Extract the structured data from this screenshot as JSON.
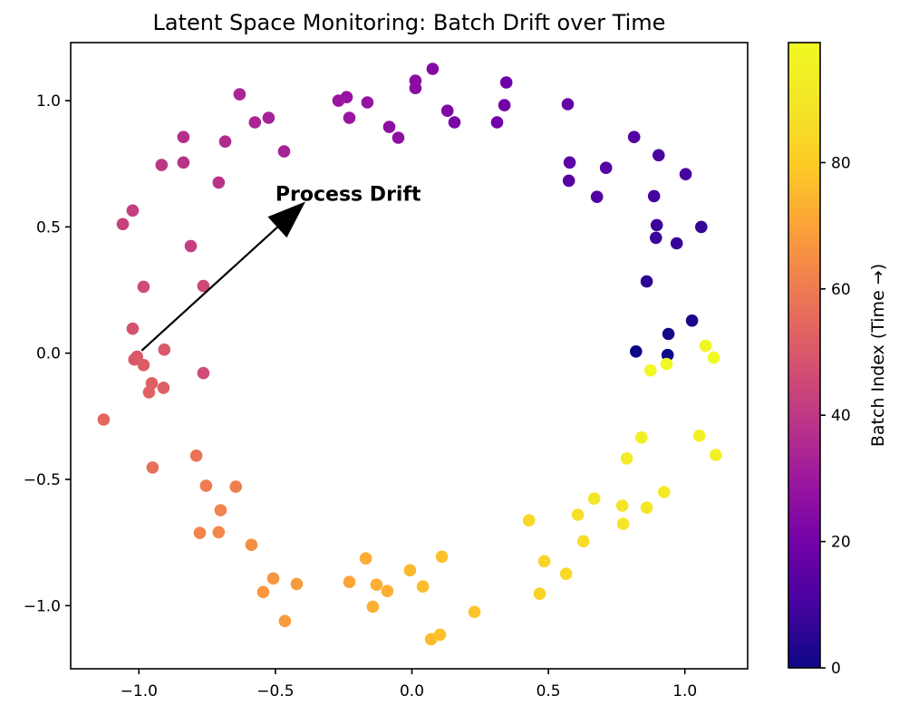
{
  "chart_data": {
    "type": "scatter",
    "title": "Latent Space Monitoring: Batch Drift over Time",
    "xlabel": "",
    "ylabel": "",
    "xlim": [
      -1.25,
      1.23
    ],
    "ylim": [
      -1.25,
      1.23
    ],
    "x_ticks": [
      -1.0,
      -0.5,
      0.0,
      0.5,
      1.0
    ],
    "x_tick_labels": [
      "−1.0",
      "−0.5",
      "0.0",
      "0.5",
      "1.0"
    ],
    "y_ticks": [
      -1.0,
      -0.5,
      0.0,
      0.5,
      1.0
    ],
    "y_tick_labels": [
      "−1.0",
      "−0.5",
      "0.0",
      "0.5",
      "1.0"
    ],
    "grid": false,
    "legend": "none",
    "marker_diameter_px": 13.6,
    "color_field": "batch_index",
    "colormap": {
      "name": "plasma",
      "stops": [
        [
          0.0,
          "#0d0887"
        ],
        [
          0.1,
          "#46039f"
        ],
        [
          0.2,
          "#7201a8"
        ],
        [
          0.3,
          "#9c179e"
        ],
        [
          0.4,
          "#bd3786"
        ],
        [
          0.5,
          "#d8576b"
        ],
        [
          0.6,
          "#ed7953"
        ],
        [
          0.7,
          "#fb9f3a"
        ],
        [
          0.8,
          "#fdca26"
        ],
        [
          0.9,
          "#f4e527"
        ],
        [
          1.0,
          "#f0f921"
        ]
      ]
    },
    "annotation": {
      "label": "Process Drift",
      "text_pos": [
        -0.5,
        0.633
      ],
      "arrow_from": [
        -0.99,
        0.01
      ],
      "arrow_to": [
        -0.39,
        0.6
      ],
      "arrow_color": "#000000"
    },
    "colorbar": {
      "label": "Batch Index (Time →)",
      "vmin": 0,
      "vmax": 99,
      "ticks": [
        0,
        20,
        40,
        60,
        80
      ],
      "tick_labels": [
        "0",
        "20",
        "40",
        "60",
        "80"
      ]
    },
    "points_format": [
      "x",
      "y",
      "batch_index"
    ],
    "points": [
      [
        0.821,
        0.007,
        0
      ],
      [
        0.937,
        -0.007,
        0
      ],
      [
        0.94,
        0.076,
        1
      ],
      [
        1.026,
        0.129,
        2
      ],
      [
        0.86,
        0.284,
        5
      ],
      [
        0.97,
        0.435,
        7
      ],
      [
        1.06,
        0.5,
        7
      ],
      [
        0.894,
        0.457,
        8
      ],
      [
        0.897,
        0.507,
        8
      ],
      [
        0.887,
        0.622,
        10
      ],
      [
        1.003,
        0.709,
        10
      ],
      [
        0.904,
        0.784,
        11
      ],
      [
        0.678,
        0.619,
        12
      ],
      [
        0.711,
        0.734,
        13
      ],
      [
        0.814,
        0.856,
        13
      ],
      [
        0.575,
        0.683,
        14
      ],
      [
        0.578,
        0.755,
        15
      ],
      [
        0.571,
        0.986,
        17
      ],
      [
        0.346,
        1.072,
        19
      ],
      [
        0.339,
        0.982,
        20
      ],
      [
        0.312,
        0.914,
        20
      ],
      [
        0.156,
        0.914,
        22
      ],
      [
        0.13,
        0.96,
        23
      ],
      [
        0.076,
        1.126,
        24
      ],
      [
        0.013,
        1.079,
        25
      ],
      [
        0.013,
        1.05,
        25
      ],
      [
        -0.083,
        0.896,
        26
      ],
      [
        -0.05,
        0.853,
        26
      ],
      [
        -0.163,
        0.993,
        28
      ],
      [
        -0.239,
        1.014,
        28
      ],
      [
        -0.269,
        1.0,
        29
      ],
      [
        -0.229,
        0.932,
        29
      ],
      [
        -0.525,
        0.932,
        33
      ],
      [
        -0.468,
        0.799,
        33
      ],
      [
        -0.575,
        0.914,
        34
      ],
      [
        -0.631,
        1.025,
        34
      ],
      [
        -0.684,
        0.838,
        36
      ],
      [
        -0.837,
        0.856,
        37
      ],
      [
        -0.837,
        0.755,
        38
      ],
      [
        -0.708,
        0.676,
        38
      ],
      [
        -0.917,
        0.745,
        39
      ],
      [
        -1.023,
        0.565,
        42
      ],
      [
        -1.059,
        0.511,
        43
      ],
      [
        -0.81,
        0.424,
        42
      ],
      [
        -0.983,
        0.263,
        46
      ],
      [
        -0.764,
        0.266,
        45
      ],
      [
        -1.023,
        0.097,
        48
      ],
      [
        -0.907,
        0.014,
        50
      ],
      [
        -1.007,
        -0.014,
        50
      ],
      [
        -1.017,
        -0.025,
        50
      ],
      [
        -0.983,
        -0.047,
        51
      ],
      [
        -0.764,
        -0.079,
        46
      ],
      [
        -0.953,
        -0.119,
        52
      ],
      [
        -0.963,
        -0.155,
        53
      ],
      [
        -0.91,
        -0.137,
        52
      ],
      [
        -1.129,
        -0.263,
        54
      ],
      [
        -0.95,
        -0.453,
        57
      ],
      [
        -0.79,
        -0.406,
        58
      ],
      [
        -0.754,
        -0.525,
        60
      ],
      [
        -0.645,
        -0.529,
        61
      ],
      [
        -0.701,
        -0.622,
        62
      ],
      [
        -0.777,
        -0.712,
        62
      ],
      [
        -0.708,
        -0.709,
        63
      ],
      [
        -0.588,
        -0.759,
        65
      ],
      [
        -0.508,
        -0.892,
        67
      ],
      [
        -0.545,
        -0.946,
        67
      ],
      [
        -0.422,
        -0.914,
        68
      ],
      [
        -0.465,
        -1.061,
        68
      ],
      [
        -0.229,
        -0.906,
        71
      ],
      [
        -0.169,
        -0.813,
        72
      ],
      [
        -0.13,
        -0.917,
        73
      ],
      [
        -0.09,
        -0.942,
        73
      ],
      [
        -0.143,
        -1.004,
        73
      ],
      [
        -0.007,
        -0.86,
        75
      ],
      [
        0.04,
        -0.924,
        76
      ],
      [
        0.07,
        -1.133,
        76
      ],
      [
        0.103,
        -1.115,
        77
      ],
      [
        0.11,
        -0.806,
        77
      ],
      [
        0.229,
        -1.025,
        78
      ],
      [
        0.429,
        -0.662,
        84
      ],
      [
        0.485,
        -0.824,
        83
      ],
      [
        0.565,
        -0.874,
        84
      ],
      [
        0.468,
        -0.953,
        82
      ],
      [
        0.628,
        -0.745,
        86
      ],
      [
        0.608,
        -0.64,
        87
      ],
      [
        0.668,
        -0.576,
        89
      ],
      [
        0.771,
        -0.604,
        89
      ],
      [
        0.86,
        -0.612,
        90
      ],
      [
        0.774,
        -0.676,
        89
      ],
      [
        0.924,
        -0.55,
        91
      ],
      [
        0.787,
        -0.417,
        92
      ],
      [
        0.841,
        -0.334,
        94
      ],
      [
        1.113,
        -0.403,
        94
      ],
      [
        1.053,
        -0.327,
        95
      ],
      [
        0.933,
        -0.043,
        99
      ],
      [
        0.874,
        -0.068,
        98
      ],
      [
        1.106,
        -0.018,
        99
      ],
      [
        1.076,
        0.029,
        97
      ]
    ]
  }
}
